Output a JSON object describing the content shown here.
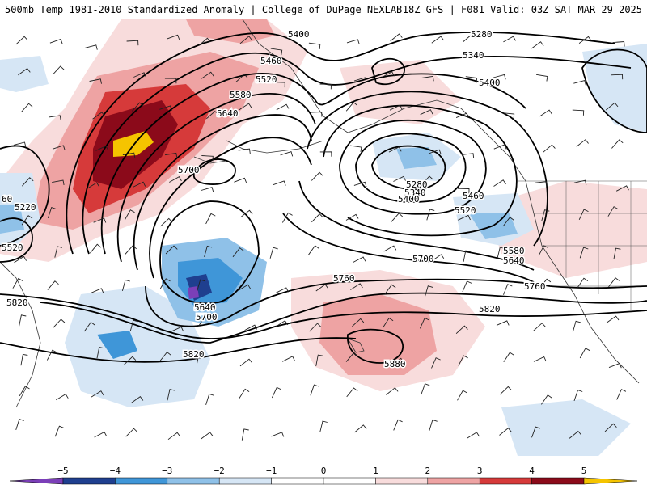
{
  "header": {
    "title_left": "500mb Temp 1981-2010 Standardized Anomaly | College of DuPage NEXLAB",
    "title_right": "18Z GFS | F081 Valid: 03Z SAT MAR 29 2025"
  },
  "colors": {
    "m5": "#7b3fb8",
    "m4": "#1f3f8f",
    "m3": "#3f96d8",
    "m2": "#8fc1e8",
    "m1": "#d6e6f5",
    "p1": "#f8dcdc",
    "p2": "#eea3a3",
    "p3": "#d63a3a",
    "p4": "#8b0a1a",
    "p5": "#f5c400"
  },
  "contour_labels": [
    {
      "text": "5400",
      "pos": "north-center"
    },
    {
      "text": "5280",
      "pos": "north-east"
    },
    {
      "text": "5340",
      "pos": "north-east"
    },
    {
      "text": "5460",
      "pos": "north-center"
    },
    {
      "text": "5520",
      "pos": "north-center"
    },
    {
      "text": "5580",
      "pos": "north-center"
    },
    {
      "text": "5640",
      "pos": "north-center"
    },
    {
      "text": "5700",
      "pos": "center"
    },
    {
      "text": "5400",
      "pos": "east"
    },
    {
      "text": "60",
      "pos": "west-edge"
    },
    {
      "text": "5220",
      "pos": "west"
    },
    {
      "text": "5520",
      "pos": "west"
    },
    {
      "text": "5280",
      "pos": "center-east"
    },
    {
      "text": "5340",
      "pos": "center-east"
    },
    {
      "text": "5400",
      "pos": "center-east"
    },
    {
      "text": "5460",
      "pos": "center-east"
    },
    {
      "text": "5520",
      "pos": "east"
    },
    {
      "text": "5580",
      "pos": "east"
    },
    {
      "text": "5640",
      "pos": "east"
    },
    {
      "text": "5700",
      "pos": "center"
    },
    {
      "text": "5760",
      "pos": "center"
    },
    {
      "text": "5760",
      "pos": "east"
    },
    {
      "text": "5820",
      "pos": "west"
    },
    {
      "text": "5640",
      "pos": "low-center"
    },
    {
      "text": "5700",
      "pos": "low-center"
    },
    {
      "text": "5820",
      "pos": "east"
    },
    {
      "text": "5820",
      "pos": "south-west"
    },
    {
      "text": "5880",
      "pos": "south-center"
    }
  ],
  "colorbar": {
    "ticks": [
      "−5",
      "−4",
      "−3",
      "−2",
      "−1",
      "0",
      "1",
      "2",
      "3",
      "4",
      "5"
    ]
  }
}
